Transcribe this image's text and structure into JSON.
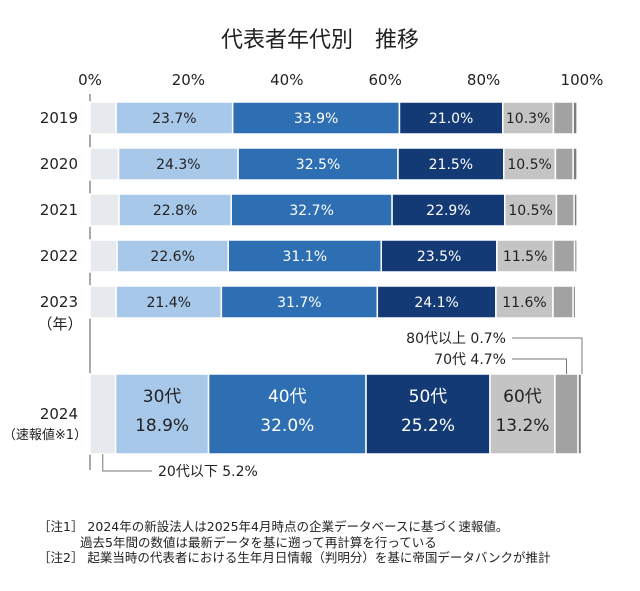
{
  "chart_data": {
    "type": "bar",
    "orientation": "horizontal",
    "stacked": true,
    "title": "代表者年代別　推移",
    "x_ticks": [
      "0%",
      "20%",
      "40%",
      "60%",
      "80%",
      "100%"
    ],
    "xlim": [
      0,
      100
    ],
    "year_unit_label": "（年）",
    "categories": [
      "2019",
      "2020",
      "2021",
      "2022",
      "2023",
      "2024"
    ],
    "category_sublabels": [
      "",
      "",
      "",
      "",
      "",
      "（速報値※1）"
    ],
    "series": [
      {
        "name": "20代以下",
        "color": "#e6e9ed",
        "values": [
          5.3,
          5.8,
          5.9,
          5.5,
          5.3,
          5.2
        ]
      },
      {
        "name": "30代",
        "color": "#a8c8ea",
        "values": [
          23.7,
          24.3,
          22.8,
          22.6,
          21.4,
          18.9
        ]
      },
      {
        "name": "40代",
        "color": "#2e6fb3",
        "values": [
          33.9,
          32.5,
          32.7,
          31.1,
          31.7,
          32.0
        ]
      },
      {
        "name": "50代",
        "color": "#143a76",
        "values": [
          21.0,
          21.5,
          22.9,
          23.5,
          24.1,
          25.2
        ]
      },
      {
        "name": "60代",
        "color": "#c4c4c4",
        "values": [
          10.3,
          10.5,
          10.5,
          11.5,
          11.6,
          13.2
        ]
      },
      {
        "name": "70代",
        "color": "#a2a2a2",
        "values": [
          4.0,
          3.6,
          3.6,
          4.3,
          4.1,
          4.7
        ]
      },
      {
        "name": "80代以上",
        "color": "#7c7c7c",
        "values": [
          0.8,
          0.8,
          0.6,
          0.5,
          0.5,
          0.7
        ]
      }
    ],
    "data_labels": [
      [
        "",
        "23.7%",
        "33.9%",
        "21.0%",
        "10.3%",
        "",
        ""
      ],
      [
        "",
        "24.3%",
        "32.5%",
        "21.5%",
        "10.5%",
        "",
        ""
      ],
      [
        "",
        "22.8%",
        "32.7%",
        "22.9%",
        "10.5%",
        "",
        ""
      ],
      [
        "",
        "22.6%",
        "31.1%",
        "23.5%",
        "11.5%",
        "",
        ""
      ],
      [
        "",
        "21.4%",
        "31.7%",
        "24.1%",
        "11.6%",
        "",
        ""
      ],
      [
        "",
        "30代\n18.9%",
        "40代\n32.0%",
        "50代\n25.2%",
        "60代\n13.2%",
        "",
        ""
      ]
    ],
    "annotations": [
      {
        "text": "80代以上 0.7%",
        "series": "80代以上"
      },
      {
        "text": "70代 4.7%",
        "series": "70代"
      },
      {
        "text": "20代以下 5.2%",
        "series": "20代以下"
      }
    ]
  },
  "notes": {
    "note1": "［注1］ 2024年の新設法人は2025年4月時点の企業データベースに基づく速報値。",
    "note1_cont": "過去5年間の数値は最新データを基に遡って再計算を行っている",
    "note2": "［注2］ 起業当時の代表者における生年月日情報（判明分）を基に帝国データバンクが推計"
  }
}
